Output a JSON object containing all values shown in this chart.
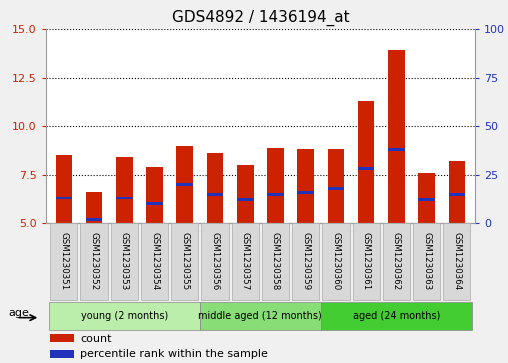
{
  "title": "GDS4892 / 1436194_at",
  "samples": [
    "GSM1230351",
    "GSM1230352",
    "GSM1230353",
    "GSM1230354",
    "GSM1230355",
    "GSM1230356",
    "GSM1230357",
    "GSM1230358",
    "GSM1230359",
    "GSM1230360",
    "GSM1230361",
    "GSM1230362",
    "GSM1230363",
    "GSM1230364"
  ],
  "count_values": [
    8.5,
    6.6,
    8.4,
    7.9,
    9.0,
    8.6,
    8.0,
    8.9,
    8.8,
    8.8,
    11.3,
    13.9,
    7.6,
    8.2
  ],
  "percentile_values": [
    6.3,
    5.2,
    6.3,
    6.0,
    7.0,
    6.5,
    6.2,
    6.5,
    6.6,
    6.8,
    7.8,
    8.8,
    6.2,
    6.5
  ],
  "ymin": 5,
  "ymax": 15,
  "yticks_left": [
    5,
    7.5,
    10,
    12.5,
    15
  ],
  "yticks_right": [
    0,
    25,
    50,
    75,
    100
  ],
  "bar_color": "#cc2200",
  "percentile_color": "#2233bb",
  "age_label": "age",
  "legend_count": "count",
  "legend_percentile": "percentile rank within the sample",
  "bg_color": "#f0f0f0",
  "plot_bg": "#ffffff",
  "title_fontsize": 11,
  "axis_label_color_left": "#cc2200",
  "axis_label_color_right": "#2233bb",
  "group_data": [
    {
      "range": [
        0,
        4
      ],
      "label": "young (2 months)",
      "color": "#bbeeaa"
    },
    {
      "range": [
        5,
        8
      ],
      "label": "middle aged (12 months)",
      "color": "#88dd77"
    },
    {
      "range": [
        9,
        13
      ],
      "label": "aged (24 months)",
      "color": "#44cc33"
    }
  ]
}
